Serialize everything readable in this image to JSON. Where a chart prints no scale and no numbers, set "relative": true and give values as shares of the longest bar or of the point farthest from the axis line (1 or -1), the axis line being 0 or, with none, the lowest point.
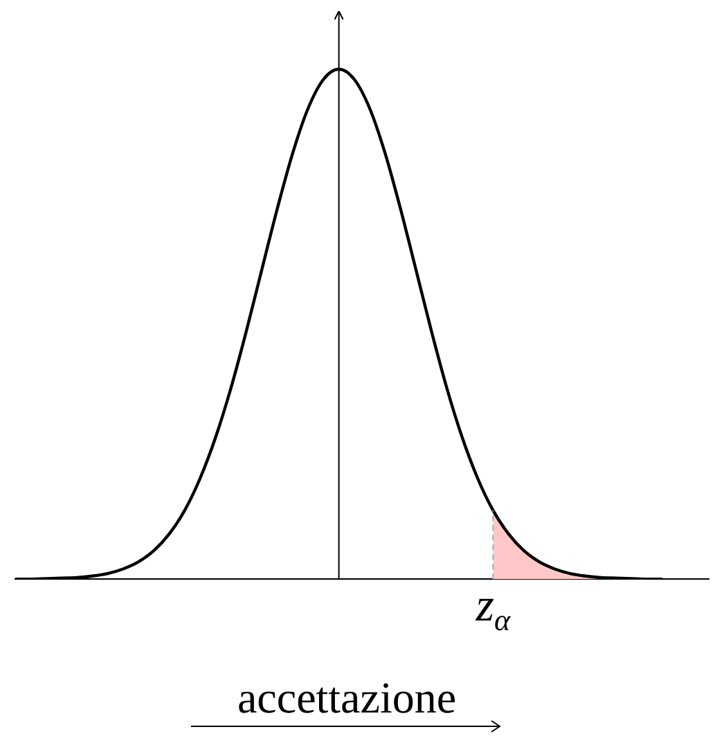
{
  "chart_data": {
    "type": "line",
    "relative": true,
    "categories": [
      null,
      null,
      null,
      null,
      null,
      null,
      null,
      null,
      null,
      null,
      null,
      null,
      null,
      null,
      null,
      null,
      null,
      null,
      null,
      null,
      null,
      null,
      null,
      null,
      null,
      null,
      null,
      null,
      null,
      null,
      null,
      null,
      null,
      null,
      null,
      null,
      null,
      null,
      null,
      null,
      null,
      null,
      null,
      null,
      null,
      null
    ],
    "series": [
      {
        "type": "area",
        "color": "#ffc8c8",
        "values": [
          null,
          null,
          null,
          null,
          null,
          null,
          null,
          null,
          null,
          null,
          null,
          null,
          null,
          null,
          null,
          null,
          null,
          null,
          null,
          null,
          null,
          null,
          null,
          null,
          null,
          null,
          null,
          null,
          null,
          null,
          null,
          0.135,
          0.089,
          0.056,
          0.034,
          0.02,
          0.011,
          0.006,
          0.003,
          0.002,
          0.001,
          0,
          0,
          null,
          null,
          null
        ]
      },
      {
        "color": "#000000",
        "values": [
          0,
          0,
          0.001,
          0.002,
          0.003,
          0.006,
          0.011,
          0.02,
          0.034,
          0.056,
          0.089,
          0.135,
          0.198,
          0.278,
          0.375,
          0.487,
          0.607,
          0.726,
          0.835,
          0.923,
          0.98,
          1,
          0.98,
          0.923,
          0.835,
          0.726,
          0.607,
          0.487,
          0.375,
          0.278,
          0.198,
          0.135,
          0.089,
          0.056,
          0.034,
          0.02,
          0.011,
          0.006,
          0.003,
          0.002,
          0.001,
          0,
          0,
          null,
          null,
          null
        ]
      }
    ],
    "annotations": [
      "z$_{α}$",
      "accettazione"
    ],
    "grid": false,
    "legend": false,
    "marker": "none",
    "line_style": "solid"
  }
}
